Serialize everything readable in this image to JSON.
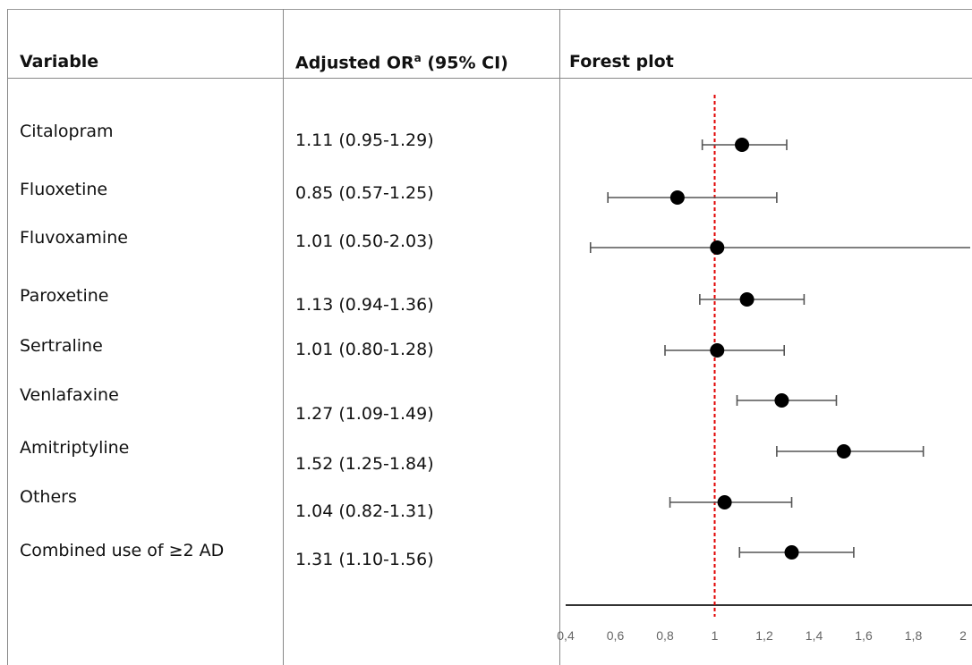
{
  "table": {
    "headers": {
      "variable": "Variable",
      "or_main": "Adjusted OR",
      "or_sup": "a",
      "or_tail": " (95% CI)",
      "forest": "Forest plot"
    },
    "rows": [
      {
        "variable": "Citalopram",
        "or_text": "1.11 (0.95-1.29)"
      },
      {
        "variable": "Fluoxetine",
        "or_text": "0.85 (0.57-1.25)"
      },
      {
        "variable": "Fluvoxamine",
        "or_text": "1.01 (0.50-2.03)"
      },
      {
        "variable": "Paroxetine",
        "or_text": "1.13 (0.94-1.36)"
      },
      {
        "variable": "Sertraline",
        "or_text": "1.01 (0.80-1.28)"
      },
      {
        "variable": "Venlafaxine",
        "or_text": "1.27 (1.09-1.49)"
      },
      {
        "variable": "Amitriptyline",
        "or_text": "1.52 (1.25-1.84)"
      },
      {
        "variable": "Others",
        "or_text": "1.04 (0.82-1.31)"
      },
      {
        "variable": "Combined use of ≥2 AD",
        "or_text": "1.31 (1.10-1.56)"
      }
    ]
  },
  "chart_data": {
    "type": "scatter",
    "subtype": "forest",
    "categories": [
      "Citalopram",
      "Fluoxetine",
      "Fluvoxamine",
      "Paroxetine",
      "Sertraline",
      "Venlafaxine",
      "Amitriptyline",
      "Others",
      "Combined use of ≥2 AD"
    ],
    "values": [
      1.11,
      0.85,
      1.01,
      1.13,
      1.01,
      1.27,
      1.52,
      1.04,
      1.31
    ],
    "ci_lower": [
      0.95,
      0.57,
      0.5,
      0.94,
      0.8,
      1.09,
      1.25,
      0.82,
      1.1
    ],
    "ci_upper": [
      1.29,
      1.25,
      2.03,
      1.36,
      1.28,
      1.49,
      1.84,
      1.31,
      1.56
    ],
    "reference_line": 1,
    "xlim": [
      0.4,
      2
    ],
    "xticks": [
      0.4,
      0.6,
      0.8,
      1,
      1.2,
      1.4,
      1.6,
      1.8,
      2
    ],
    "xtick_labels": [
      "0,4",
      "0,6",
      "0,8",
      "1",
      "1,2",
      "1,4",
      "1,6",
      "1,8",
      "2"
    ],
    "grid": false,
    "colors": {
      "point": "#000000",
      "whisker": "#555555",
      "reference": "#e00000",
      "axis": "#333333"
    }
  }
}
